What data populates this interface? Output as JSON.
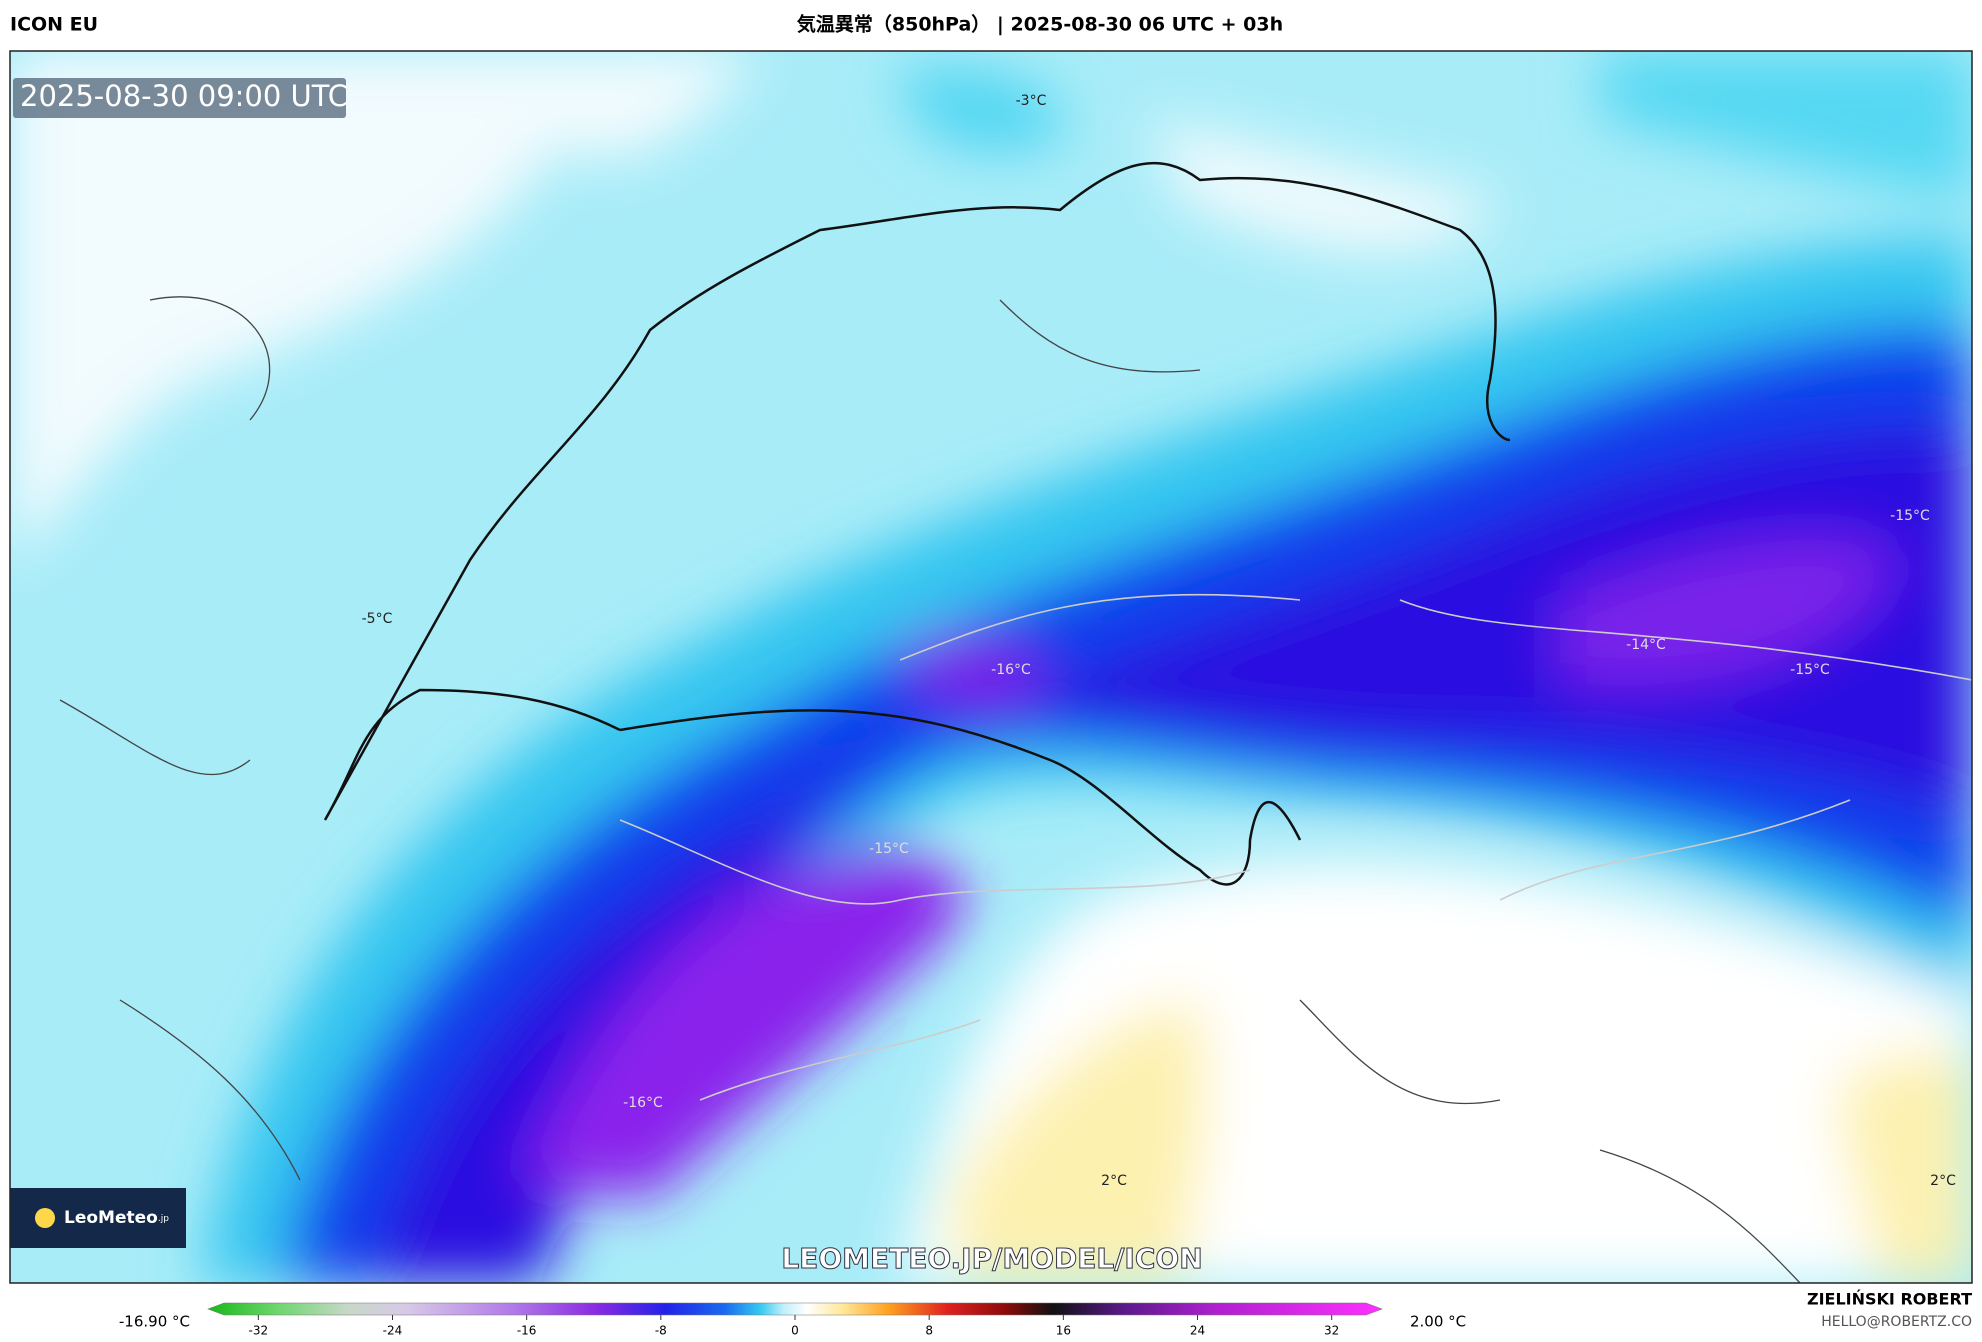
{
  "header": {
    "model": "ICON EU",
    "title": "気温異常（850hPa） | 2025-08-30 06 UTC + 03h"
  },
  "map": {
    "timestamp": "2025-08-30 09:00 UTC",
    "labels": [
      "-3°C",
      "-5°C",
      "-16°C",
      "-15°C",
      "-14°C",
      "-15°C",
      "-15°C",
      "-16°C",
      "2°C",
      "2°C"
    ],
    "logo": "LeoMeteo",
    "logo_suffix": ".jp",
    "watermark": "LEOMETEO.JP/MODEL/ICON"
  },
  "colorbar": {
    "min_label": "-16.90 °C",
    "max_label": "2.00 °C",
    "lim": [
      -35,
      35
    ],
    "ticks": [
      -32,
      -24,
      -16,
      -8,
      0,
      8,
      16,
      24,
      32
    ]
  },
  "credits": {
    "author": "ZIELIŃSKI ROBERT",
    "email": "HELLO@ROBERTZ.CO"
  }
}
